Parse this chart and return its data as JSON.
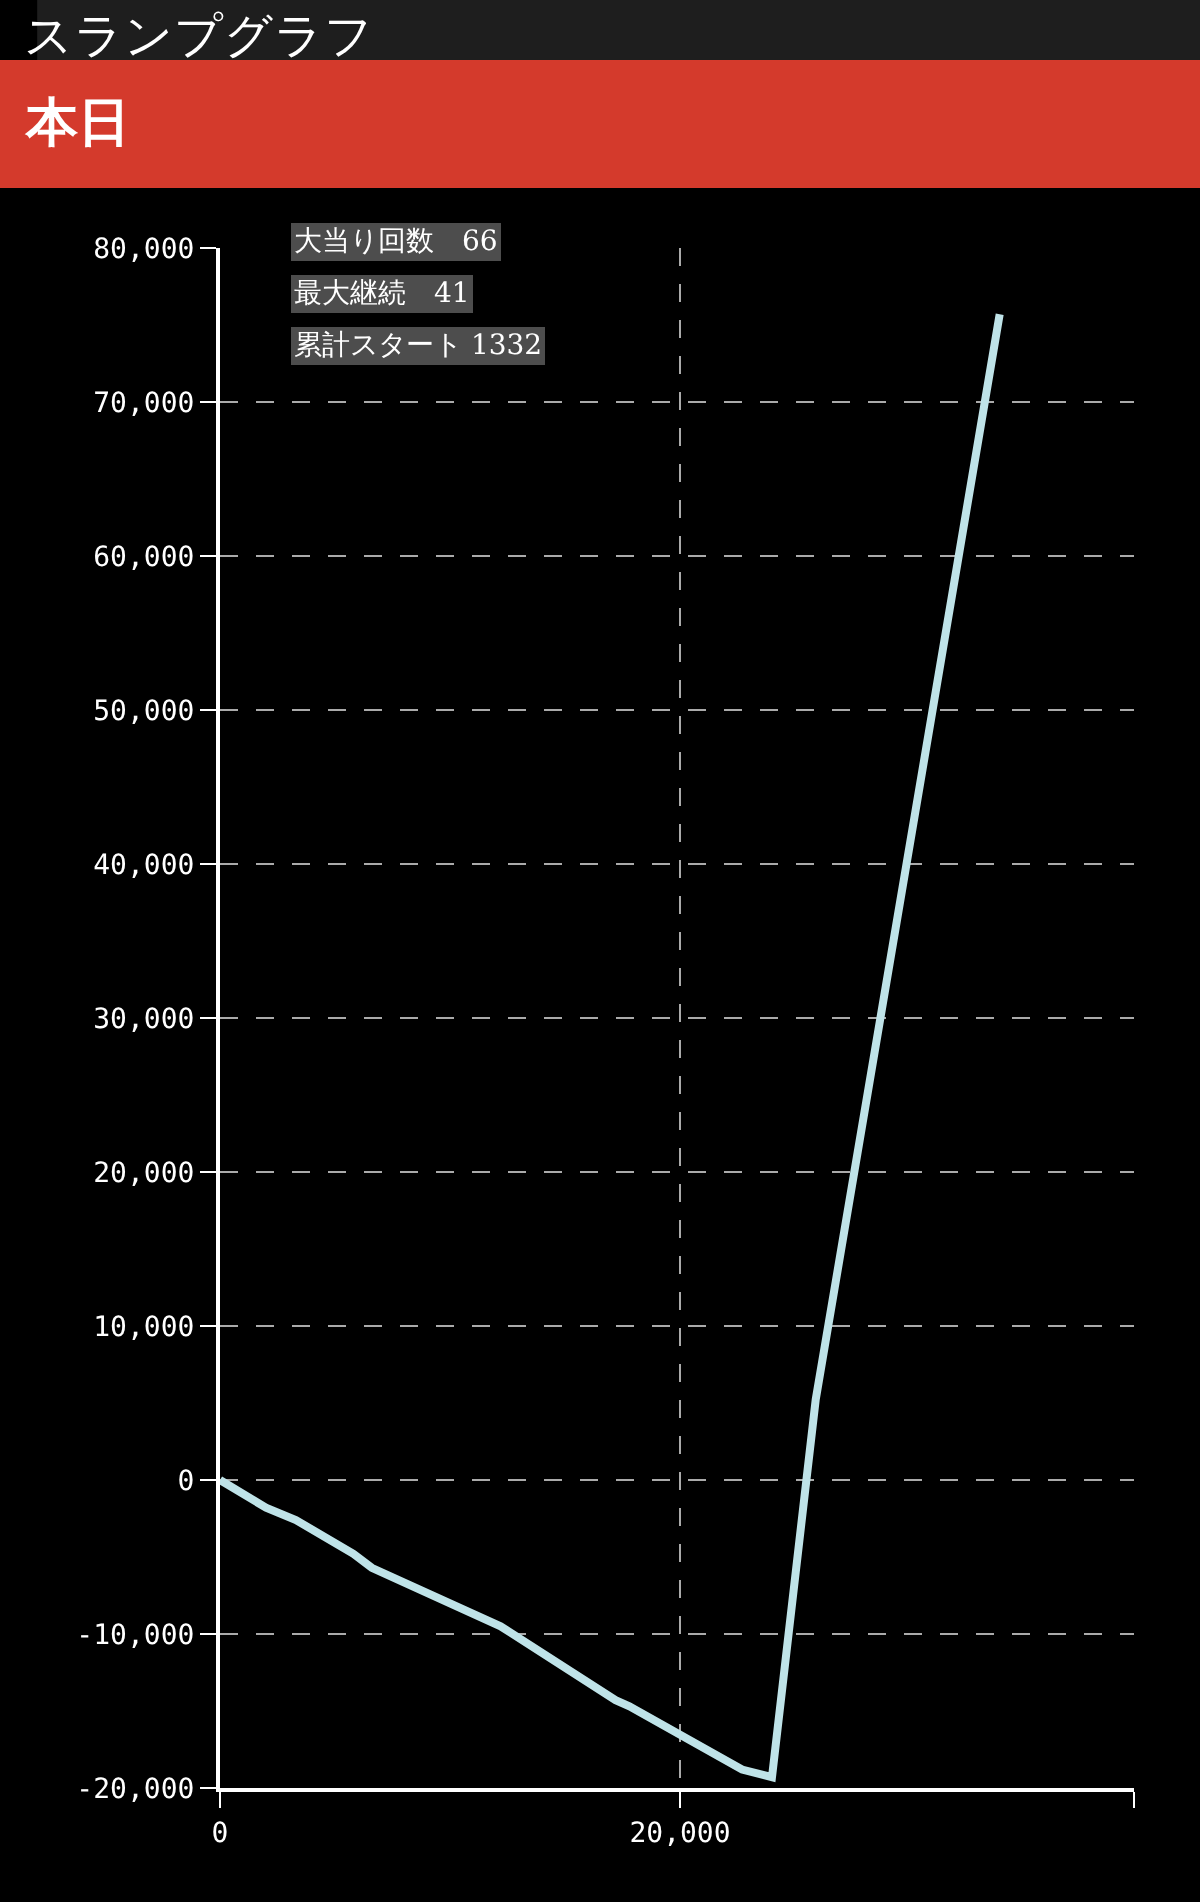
{
  "chart_data": {
    "type": "line",
    "title": "スランプグラフ",
    "subtitle": "本日",
    "x": [
      0,
      2000,
      3300,
      5800,
      6600,
      12200,
      17200,
      17800,
      22700,
      24000,
      25900,
      33900
    ],
    "series": [
      {
        "color": "#bfe3e8",
        "values": [
          0,
          -1800,
          -2600,
          -4800,
          -5700,
          -9500,
          -14300,
          -14700,
          -18800,
          -19300,
          5200,
          75700
        ]
      }
    ],
    "xlim": [
      0,
      39740
    ],
    "xticks": [
      0,
      {
        "value": 20000,
        "label": "20,000"
      },
      {
        "value": 39740,
        "label": null
      }
    ],
    "ylim": [
      -20000,
      80000
    ],
    "yticks": [
      {
        "value": -20000,
        "label": "-20,000"
      },
      {
        "value": -10000,
        "label": "-10,000"
      },
      0,
      {
        "value": 10000,
        "label": "10,000"
      },
      {
        "value": 20000,
        "label": "20,000"
      },
      {
        "value": 30000,
        "label": "30,000"
      },
      {
        "value": 40000,
        "label": "40,000"
      },
      {
        "value": 50000,
        "label": "50,000"
      },
      {
        "value": 60000,
        "label": "60,000"
      },
      {
        "value": 70000,
        "label": "70,000"
      },
      {
        "value": 80000,
        "label": "80,000"
      }
    ],
    "annotations": [
      "大当り回数　66",
      "最大継続　41",
      "累計スタート 1332"
    ],
    "grid": true,
    "marker": "none",
    "line_style": "solid"
  }
}
